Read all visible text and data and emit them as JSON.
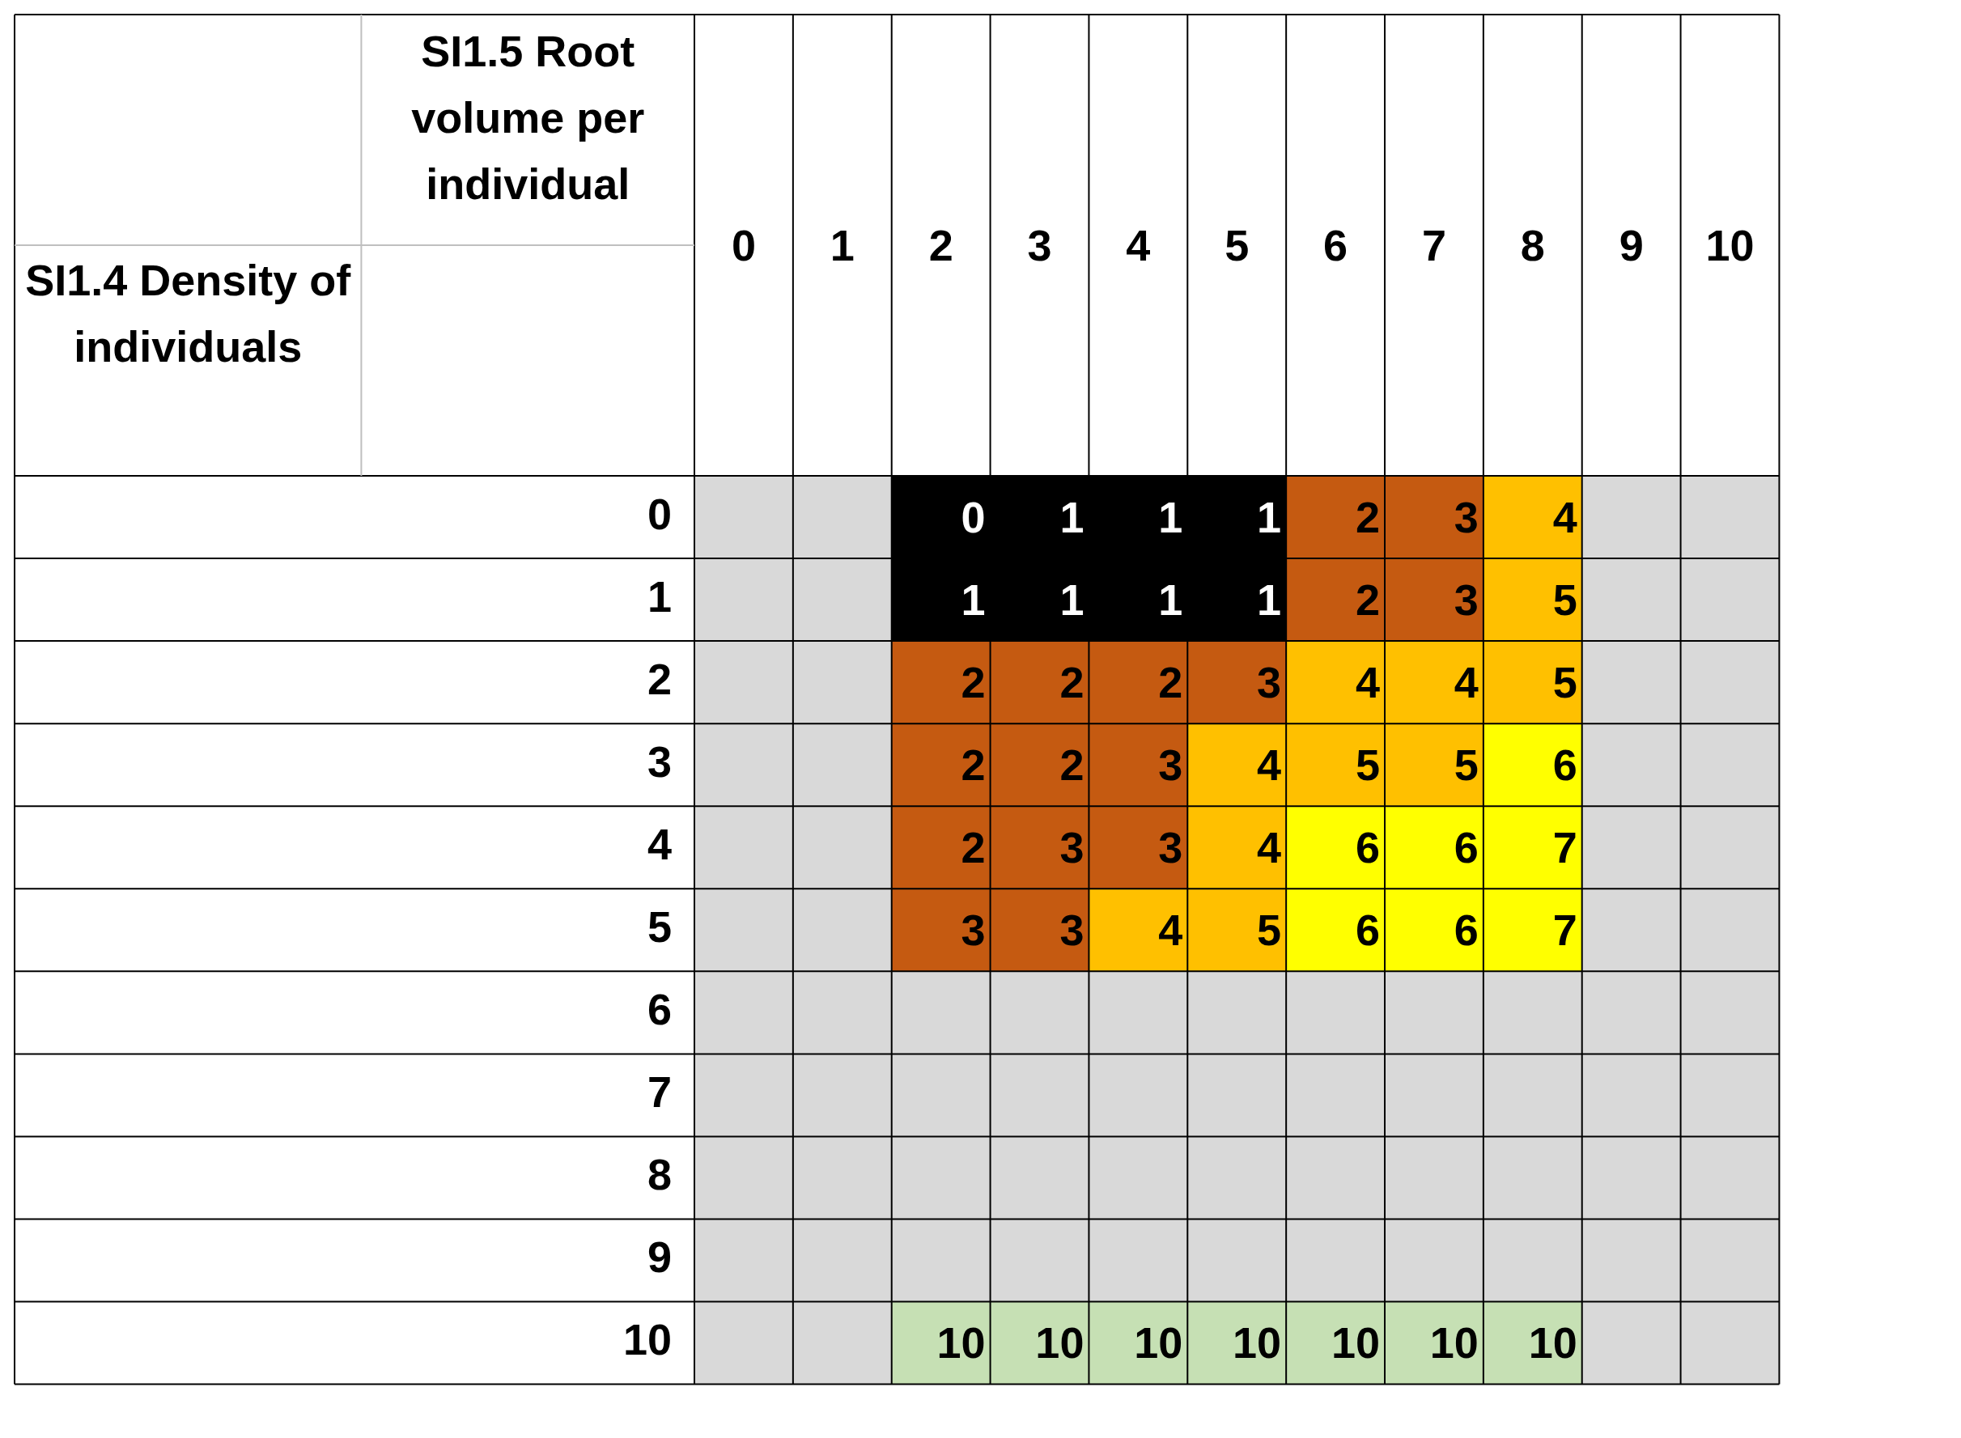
{
  "chart_data": {
    "type": "heatmap",
    "xlabel": "SI1.5 Root volume per individual",
    "annotations": [
      "SI1.4 Density of individuals"
    ],
    "data_labels": true,
    "categories": [
      "0",
      "1",
      "2",
      "3",
      "4",
      "5",
      "6",
      "7",
      "8",
      "9",
      "10"
    ],
    "y_categories": [
      "0",
      "1",
      "2",
      "3",
      "4",
      "5",
      "6",
      "7",
      "8",
      "9",
      "10"
    ],
    "cells": [
      [
        null,
        null,
        0,
        1,
        1,
        1,
        2,
        3,
        4,
        null,
        null
      ],
      [
        null,
        null,
        1,
        1,
        1,
        1,
        2,
        3,
        5,
        null,
        null
      ],
      [
        null,
        null,
        2,
        2,
        2,
        3,
        4,
        4,
        5,
        null,
        null
      ],
      [
        null,
        null,
        2,
        2,
        3,
        4,
        5,
        5,
        6,
        null,
        null
      ],
      [
        null,
        null,
        2,
        3,
        3,
        4,
        6,
        6,
        7,
        null,
        null
      ],
      [
        null,
        null,
        3,
        3,
        4,
        5,
        6,
        6,
        7,
        null,
        null
      ],
      [
        null,
        null,
        null,
        null,
        null,
        null,
        null,
        null,
        null,
        null,
        null
      ],
      [
        null,
        null,
        null,
        null,
        null,
        null,
        null,
        null,
        null,
        null,
        null
      ],
      [
        null,
        null,
        null,
        null,
        null,
        null,
        null,
        null,
        null,
        null,
        null
      ],
      [
        null,
        null,
        null,
        null,
        null,
        null,
        null,
        null,
        null,
        null,
        null
      ],
      [
        null,
        null,
        10,
        10,
        10,
        10,
        10,
        10,
        10,
        null,
        null
      ]
    ],
    "colors": [
      [
        "#d9d9d9",
        "#d9d9d9",
        "#000000",
        "#000000",
        "#000000",
        "#000000",
        "#c55a11",
        "#c55a11",
        "#ffc000",
        "#d9d9d9",
        "#d9d9d9"
      ],
      [
        "#d9d9d9",
        "#d9d9d9",
        "#000000",
        "#000000",
        "#000000",
        "#000000",
        "#c55a11",
        "#c55a11",
        "#ffc000",
        "#d9d9d9",
        "#d9d9d9"
      ],
      [
        "#d9d9d9",
        "#d9d9d9",
        "#c55a11",
        "#c55a11",
        "#c55a11",
        "#c55a11",
        "#ffc000",
        "#ffc000",
        "#ffc000",
        "#d9d9d9",
        "#d9d9d9"
      ],
      [
        "#d9d9d9",
        "#d9d9d9",
        "#c55a11",
        "#c55a11",
        "#c55a11",
        "#ffc000",
        "#ffc000",
        "#ffc000",
        "#ffff00",
        "#d9d9d9",
        "#d9d9d9"
      ],
      [
        "#d9d9d9",
        "#d9d9d9",
        "#c55a11",
        "#c55a11",
        "#c55a11",
        "#ffc000",
        "#ffff00",
        "#ffff00",
        "#ffff00",
        "#d9d9d9",
        "#d9d9d9"
      ],
      [
        "#d9d9d9",
        "#d9d9d9",
        "#c55a11",
        "#c55a11",
        "#ffc000",
        "#ffc000",
        "#ffff00",
        "#ffff00",
        "#ffff00",
        "#d9d9d9",
        "#d9d9d9"
      ],
      [
        "#d9d9d9",
        "#d9d9d9",
        "#d9d9d9",
        "#d9d9d9",
        "#d9d9d9",
        "#d9d9d9",
        "#d9d9d9",
        "#d9d9d9",
        "#d9d9d9",
        "#d9d9d9",
        "#d9d9d9"
      ],
      [
        "#d9d9d9",
        "#d9d9d9",
        "#d9d9d9",
        "#d9d9d9",
        "#d9d9d9",
        "#d9d9d9",
        "#d9d9d9",
        "#d9d9d9",
        "#d9d9d9",
        "#d9d9d9",
        "#d9d9d9"
      ],
      [
        "#d9d9d9",
        "#d9d9d9",
        "#d9d9d9",
        "#d9d9d9",
        "#d9d9d9",
        "#d9d9d9",
        "#d9d9d9",
        "#d9d9d9",
        "#d9d9d9",
        "#d9d9d9",
        "#d9d9d9"
      ],
      [
        "#d9d9d9",
        "#d9d9d9",
        "#d9d9d9",
        "#d9d9d9",
        "#d9d9d9",
        "#d9d9d9",
        "#d9d9d9",
        "#d9d9d9",
        "#d9d9d9",
        "#d9d9d9",
        "#d9d9d9"
      ],
      [
        "#d9d9d9",
        "#d9d9d9",
        "#c6e0b4",
        "#c6e0b4",
        "#c6e0b4",
        "#c6e0b4",
        "#c6e0b4",
        "#c6e0b4",
        "#c6e0b4",
        "#d9d9d9",
        "#d9d9d9"
      ]
    ],
    "grid": true
  }
}
